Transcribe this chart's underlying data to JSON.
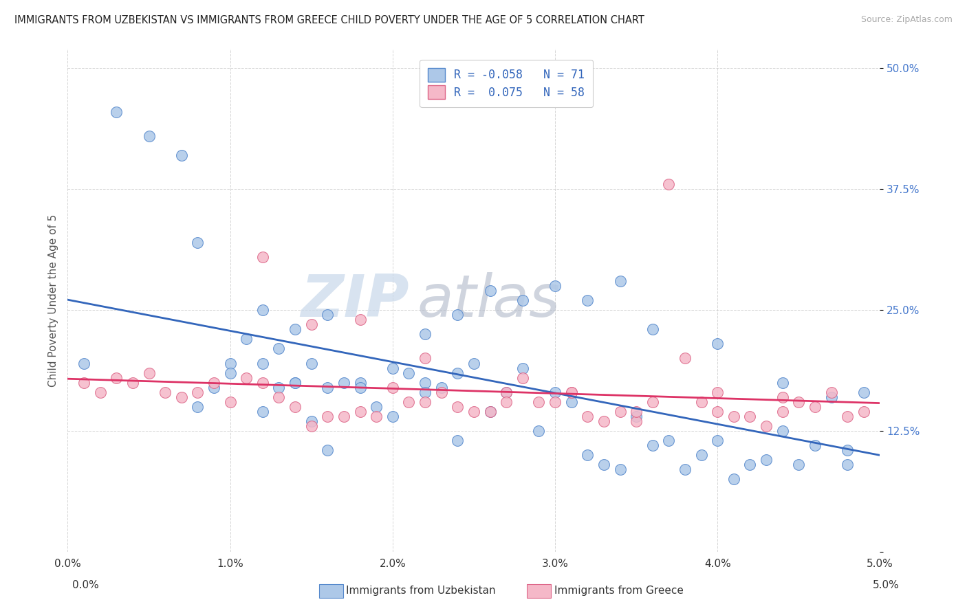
{
  "title": "IMMIGRANTS FROM UZBEKISTAN VS IMMIGRANTS FROM GREECE CHILD POVERTY UNDER THE AGE OF 5 CORRELATION CHART",
  "source": "Source: ZipAtlas.com",
  "ylabel": "Child Poverty Under the Age of 5",
  "ytick_vals": [
    0.0,
    0.125,
    0.25,
    0.375,
    0.5
  ],
  "ytick_labels": [
    "",
    "12.5%",
    "25.0%",
    "37.5%",
    "50.0%"
  ],
  "uzbekistan_color": "#adc8e8",
  "greece_color": "#f5b8c8",
  "uzbekistan_edge": "#5588cc",
  "greece_edge": "#dd6688",
  "uzbekistan_line_color": "#3366bb",
  "greece_line_color": "#dd3366",
  "uzbekistan_x": [
    0.001,
    0.003,
    0.005,
    0.007,
    0.008,
    0.009,
    0.01,
    0.011,
    0.012,
    0.012,
    0.013,
    0.013,
    0.014,
    0.014,
    0.015,
    0.015,
    0.016,
    0.016,
    0.017,
    0.018,
    0.019,
    0.02,
    0.021,
    0.022,
    0.022,
    0.023,
    0.024,
    0.024,
    0.025,
    0.026,
    0.027,
    0.028,
    0.029,
    0.03,
    0.031,
    0.032,
    0.033,
    0.034,
    0.035,
    0.036,
    0.037,
    0.038,
    0.039,
    0.04,
    0.041,
    0.042,
    0.043,
    0.044,
    0.045,
    0.046,
    0.047,
    0.048,
    0.008,
    0.01,
    0.012,
    0.014,
    0.016,
    0.018,
    0.02,
    0.022,
    0.024,
    0.026,
    0.028,
    0.03,
    0.032,
    0.034,
    0.036,
    0.04,
    0.044,
    0.048,
    0.049
  ],
  "uzbekistan_y": [
    0.195,
    0.455,
    0.43,
    0.41,
    0.32,
    0.17,
    0.195,
    0.22,
    0.25,
    0.195,
    0.21,
    0.17,
    0.23,
    0.175,
    0.195,
    0.135,
    0.17,
    0.105,
    0.175,
    0.175,
    0.15,
    0.19,
    0.185,
    0.175,
    0.225,
    0.17,
    0.185,
    0.115,
    0.195,
    0.145,
    0.165,
    0.19,
    0.125,
    0.165,
    0.155,
    0.1,
    0.09,
    0.085,
    0.14,
    0.11,
    0.115,
    0.085,
    0.1,
    0.115,
    0.075,
    0.09,
    0.095,
    0.125,
    0.09,
    0.11,
    0.16,
    0.09,
    0.15,
    0.185,
    0.145,
    0.175,
    0.245,
    0.17,
    0.14,
    0.165,
    0.245,
    0.27,
    0.26,
    0.275,
    0.26,
    0.28,
    0.23,
    0.215,
    0.175,
    0.105,
    0.165
  ],
  "greece_x": [
    0.001,
    0.002,
    0.003,
    0.004,
    0.005,
    0.006,
    0.007,
    0.008,
    0.009,
    0.01,
    0.011,
    0.012,
    0.013,
    0.014,
    0.015,
    0.016,
    0.017,
    0.018,
    0.019,
    0.02,
    0.021,
    0.022,
    0.023,
    0.024,
    0.025,
    0.026,
    0.027,
    0.028,
    0.029,
    0.03,
    0.031,
    0.032,
    0.033,
    0.034,
    0.035,
    0.036,
    0.037,
    0.038,
    0.039,
    0.04,
    0.041,
    0.042,
    0.043,
    0.044,
    0.045,
    0.046,
    0.047,
    0.048,
    0.049,
    0.012,
    0.015,
    0.018,
    0.022,
    0.027,
    0.031,
    0.035,
    0.04,
    0.044
  ],
  "greece_y": [
    0.175,
    0.165,
    0.18,
    0.175,
    0.185,
    0.165,
    0.16,
    0.165,
    0.175,
    0.155,
    0.18,
    0.175,
    0.16,
    0.15,
    0.13,
    0.14,
    0.14,
    0.145,
    0.14,
    0.17,
    0.155,
    0.155,
    0.165,
    0.15,
    0.145,
    0.145,
    0.165,
    0.18,
    0.155,
    0.155,
    0.165,
    0.14,
    0.135,
    0.145,
    0.135,
    0.155,
    0.38,
    0.2,
    0.155,
    0.145,
    0.14,
    0.14,
    0.13,
    0.145,
    0.155,
    0.15,
    0.165,
    0.14,
    0.145,
    0.305,
    0.235,
    0.24,
    0.2,
    0.155,
    0.165,
    0.145,
    0.165,
    0.16
  ],
  "xmin": 0.0,
  "xmax": 0.05,
  "ymin": 0.0,
  "ymax": 0.52,
  "watermark_zip": "ZIP",
  "watermark_atlas": "atlas",
  "legend_R_uzbekistan": "-0.058",
  "legend_N_uzbekistan": "71",
  "legend_R_greece": "0.075",
  "legend_N_greece": "58"
}
